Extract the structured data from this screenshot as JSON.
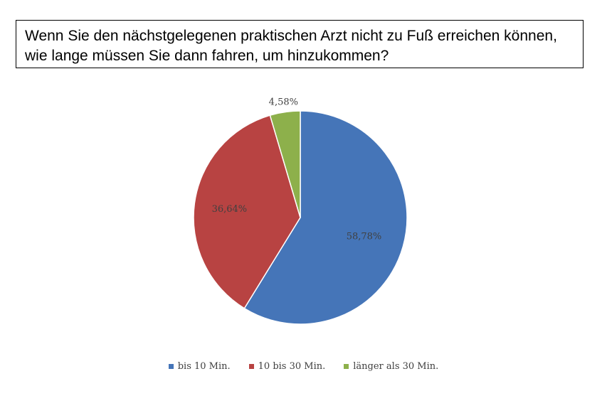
{
  "chart_data": {
    "type": "pie",
    "title_lines": [
      "Wenn Sie den nächstgelegenen praktischen Arzt nicht zu Fuß erreichen können,",
      "wie lange müssen Sie dann fahren, um hinzukommen?"
    ],
    "slices": [
      {
        "label": "bis 10 Min.",
        "value": 58.78,
        "display": "58,78%",
        "color": "#4575B8"
      },
      {
        "label": "10 bis 30 Min.",
        "value": 36.64,
        "display": "36,64%",
        "color": "#B84342"
      },
      {
        "label": "länger als 30 Min.",
        "value": 4.58,
        "display": "4,58%",
        "color": "#8DB04B"
      }
    ],
    "legend_position": "bottom"
  }
}
